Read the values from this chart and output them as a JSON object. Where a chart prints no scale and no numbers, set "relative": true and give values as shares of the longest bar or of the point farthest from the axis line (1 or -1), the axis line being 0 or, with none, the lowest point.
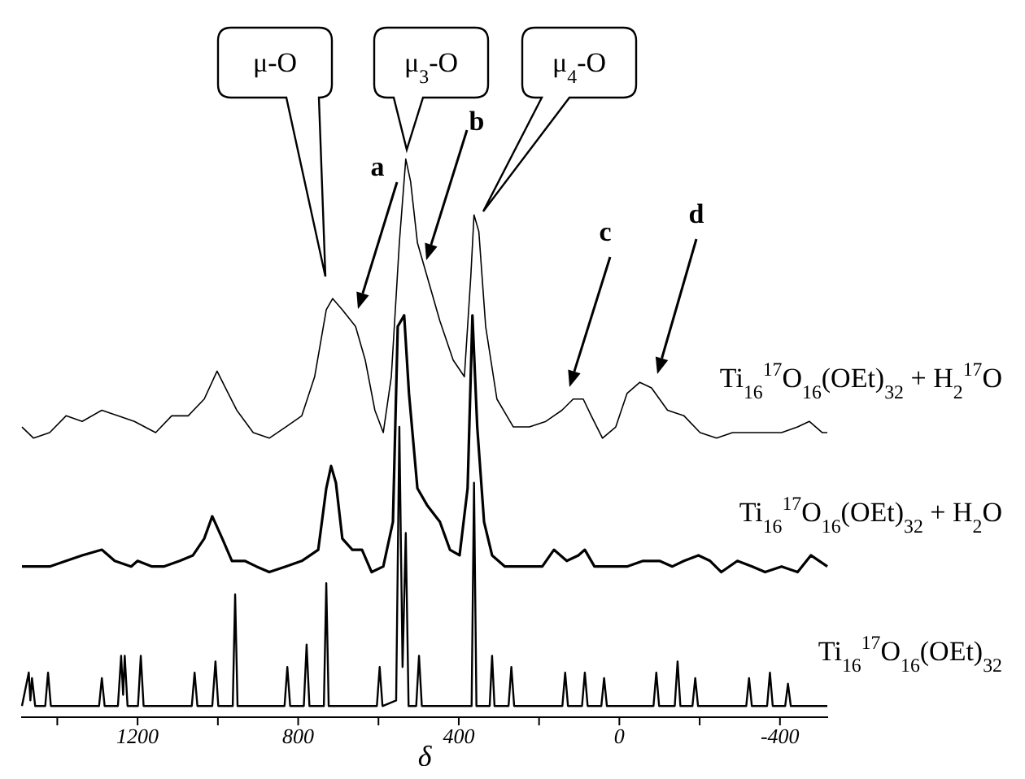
{
  "chart_data": {
    "type": "line",
    "relative": true,
    "xlabel": "δ",
    "xlim": [
      1490,
      -520
    ],
    "xticks": [
      {
        "value": 1400,
        "label": null
      },
      1200,
      {
        "value": 1000,
        "label": null
      },
      800,
      {
        "value": 600,
        "label": null
      },
      400,
      {
        "value": 200,
        "label": null
      },
      0,
      {
        "value": -200,
        "label": null
      },
      -400
    ],
    "grid": false,
    "legend": false,
    "marker": "none",
    "line_style": "solid",
    "series": [
      {
        "name": "Ti$_{16}$$^{17}$O$_{16}$(OEt)$_{32}$ + H$_{2}$$^{17}$O",
        "color": "#000000",
        "x": [
          1488,
          1459,
          1419,
          1378,
          1338,
          1289,
          1249,
          1208,
          1155,
          1115,
          1074,
          1034,
          1002,
          981,
          953,
          912,
          872,
          831,
          791,
          759,
          730,
          714,
          690,
          657,
          633,
          609,
          588,
          568,
          548,
          532,
          520,
          503,
          479,
          447,
          414,
          386,
          370,
          362,
          350,
          333,
          305,
          264,
          224,
          183,
          143,
          115,
          90,
          70,
          42,
          9,
          -19,
          -51,
          -80,
          -120,
          -161,
          -201,
          -242,
          -282,
          -323,
          -363,
          -404,
          -444,
          -473,
          -505,
          -518
        ],
        "values": [
          0.52,
          0.5,
          0.51,
          0.54,
          0.53,
          0.55,
          0.54,
          0.53,
          0.51,
          0.54,
          0.54,
          0.57,
          0.62,
          0.59,
          0.55,
          0.51,
          0.5,
          0.52,
          0.54,
          0.61,
          0.73,
          0.75,
          0.73,
          0.7,
          0.64,
          0.55,
          0.51,
          0.61,
          0.85,
          1.0,
          0.96,
          0.85,
          0.79,
          0.71,
          0.64,
          0.61,
          0.79,
          0.9,
          0.87,
          0.7,
          0.57,
          0.52,
          0.52,
          0.53,
          0.55,
          0.57,
          0.57,
          0.54,
          0.5,
          0.52,
          0.58,
          0.6,
          0.59,
          0.55,
          0.54,
          0.51,
          0.5,
          0.51,
          0.51,
          0.51,
          0.51,
          0.52,
          0.53,
          0.51,
          0.51
        ]
      },
      {
        "name": "Ti$_{16}$$^{17}$O$_{16}$(OEt)$_{32}$ + H$_{2}$O",
        "color": "#000000",
        "x": [
          1488,
          1459,
          1419,
          1378,
          1338,
          1289,
          1257,
          1216,
          1200,
          1164,
          1135,
          1095,
          1062,
          1034,
          1014,
          989,
          965,
          933,
          904,
          872,
          831,
          791,
          750,
          730,
          718,
          706,
          690,
          665,
          641,
          617,
          588,
          564,
          552,
          536,
          524,
          503,
          479,
          447,
          422,
          398,
          378,
          366,
          354,
          337,
          317,
          285,
          252,
          224,
          192,
          163,
          131,
          102,
          86,
          62,
          21,
          -19,
          -59,
          -100,
          -132,
          -161,
          -197,
          -226,
          -254,
          -294,
          -331,
          -363,
          -404,
          -444,
          -477,
          -518
        ],
        "values": [
          0.27,
          0.27,
          0.27,
          0.28,
          0.29,
          0.3,
          0.28,
          0.27,
          0.28,
          0.27,
          0.27,
          0.28,
          0.29,
          0.32,
          0.36,
          0.32,
          0.28,
          0.28,
          0.27,
          0.26,
          0.27,
          0.28,
          0.3,
          0.41,
          0.45,
          0.42,
          0.32,
          0.3,
          0.3,
          0.26,
          0.27,
          0.35,
          0.7,
          0.72,
          0.58,
          0.41,
          0.38,
          0.35,
          0.3,
          0.29,
          0.41,
          0.72,
          0.52,
          0.35,
          0.29,
          0.27,
          0.27,
          0.27,
          0.27,
          0.3,
          0.28,
          0.29,
          0.3,
          0.27,
          0.27,
          0.27,
          0.28,
          0.28,
          0.27,
          0.28,
          0.29,
          0.28,
          0.26,
          0.28,
          0.27,
          0.26,
          0.27,
          0.26,
          0.29,
          0.27
        ]
      },
      {
        "name": "Ti$_{16}$$^{17}$O$_{16}$(OEt)$_{32}$",
        "color": "#000000",
        "x": [
          1488,
          1471,
          1467,
          1463,
          1455,
          1430,
          1423,
          1416,
          1296,
          1289,
          1282,
          1249,
          1241,
          1236,
          1232,
          1225,
          1199,
          1192,
          1185,
          1065,
          1058,
          1051,
          1014,
          1006,
          999,
          963,
          957,
          951,
          834,
          827,
          820,
          786,
          779,
          772,
          736,
          730,
          724,
          604,
          597,
          590,
          556,
          548,
          540,
          532,
          525,
          506,
          499,
          492,
          368,
          362,
          356,
          323,
          317,
          311,
          276,
          269,
          262,
          142,
          135,
          128,
          93,
          86,
          79,
          45,
          38,
          31,
          -85,
          -92,
          -99,
          -138,
          -145,
          -152,
          -182,
          -189,
          -196,
          -316,
          -323,
          -330,
          -368,
          -375,
          -382,
          -413,
          -420,
          -427,
          -518
        ],
        "values": [
          0.02,
          0.08,
          0.03,
          0.07,
          0.02,
          0.02,
          0.08,
          0.02,
          0.02,
          0.07,
          0.02,
          0.02,
          0.11,
          0.04,
          0.11,
          0.02,
          0.02,
          0.11,
          0.02,
          0.02,
          0.08,
          0.02,
          0.02,
          0.1,
          0.02,
          0.02,
          0.22,
          0.02,
          0.02,
          0.09,
          0.02,
          0.02,
          0.13,
          0.02,
          0.02,
          0.24,
          0.02,
          0.02,
          0.09,
          0.02,
          0.03,
          0.52,
          0.09,
          0.33,
          0.02,
          0.02,
          0.11,
          0.02,
          0.02,
          0.42,
          0.02,
          0.02,
          0.11,
          0.02,
          0.02,
          0.09,
          0.02,
          0.02,
          0.08,
          0.02,
          0.02,
          0.08,
          0.02,
          0.02,
          0.07,
          0.02,
          0.02,
          0.08,
          0.02,
          0.02,
          0.1,
          0.02,
          0.02,
          0.07,
          0.02,
          0.02,
          0.07,
          0.02,
          0.02,
          0.08,
          0.02,
          0.02,
          0.06,
          0.02,
          0.02
        ]
      }
    ],
    "annotations": [
      "μ-O",
      "μ$_{3}$-O",
      "μ$_{4}$-O",
      "a",
      "b",
      "c",
      "d"
    ]
  }
}
